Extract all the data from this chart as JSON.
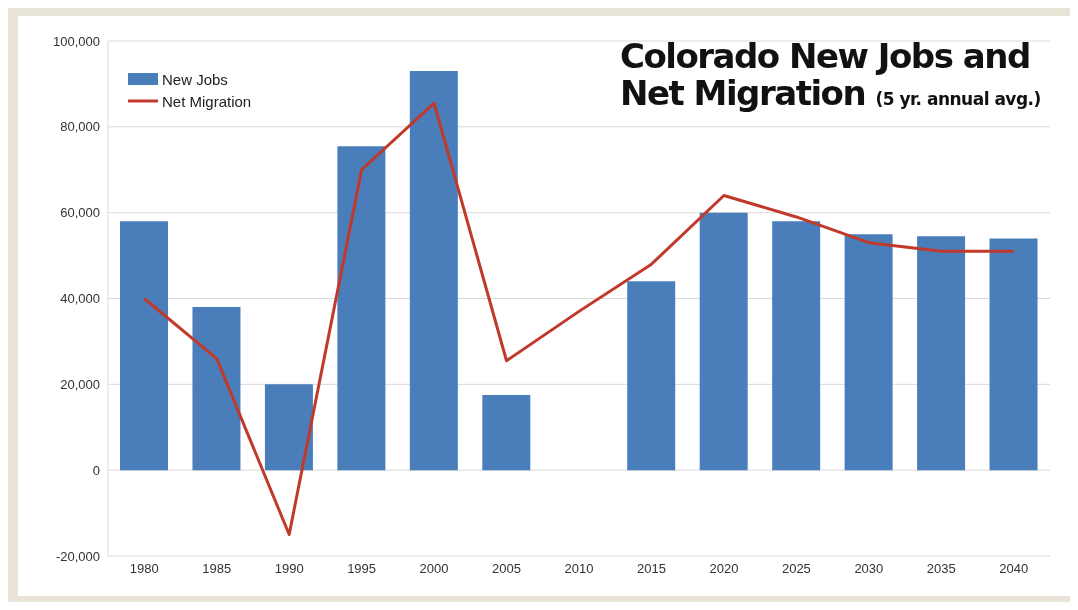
{
  "chart_data": {
    "type": "bar",
    "title": "Colorado New Jobs and Net Migration",
    "subtitle": "(5 yr. annual avg.)",
    "categories": [
      "1980",
      "1985",
      "1990",
      "1995",
      "2000",
      "2005",
      "2010",
      "2015",
      "2020",
      "2025",
      "2030",
      "2035",
      "2040"
    ],
    "series": [
      {
        "name": "New Jobs",
        "color": "#4a7ebb",
        "values": [
          58000,
          38000,
          20000,
          75500,
          93000,
          17500,
          null,
          44000,
          60000,
          58000,
          55000,
          54500,
          54000
        ]
      },
      {
        "name": "Net Migration",
        "type": "line",
        "color": "#c0392b",
        "values": [
          40000,
          26000,
          -15000,
          70000,
          85500,
          25500,
          37000,
          48000,
          64000,
          59000,
          53000,
          51000,
          51000
        ]
      }
    ],
    "ylim": [
      -20000,
      100000
    ],
    "yticks": [
      {
        "value": -20000,
        "label": "-20,000"
      },
      {
        "value": 0,
        "label": "0"
      },
      {
        "value": 20000,
        "label": "20,000"
      },
      {
        "value": 40000,
        "label": "40,000"
      },
      {
        "value": 60000,
        "label": "60,000"
      },
      {
        "value": 80000,
        "label": "80,000"
      },
      {
        "value": 100000,
        "label": "100,000"
      }
    ],
    "grid": "y",
    "legend": "top left",
    "marker": "none"
  }
}
